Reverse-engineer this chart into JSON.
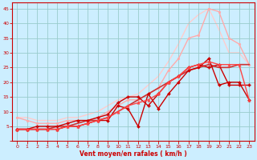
{
  "background_color": "#cceeff",
  "grid_color": "#99cccc",
  "xlabel": "Vent moyen/en rafales ( km/h )",
  "xlabel_color": "#cc0000",
  "tick_color": "#cc0000",
  "xlim": [
    -0.5,
    23.5
  ],
  "ylim": [
    0,
    47
  ],
  "yticks": [
    0,
    5,
    10,
    15,
    20,
    25,
    30,
    35,
    40,
    45
  ],
  "xticks": [
    0,
    1,
    2,
    3,
    4,
    5,
    6,
    7,
    8,
    9,
    10,
    11,
    12,
    13,
    14,
    15,
    16,
    17,
    18,
    19,
    20,
    21,
    22,
    23
  ],
  "lines": [
    {
      "x": [
        0,
        1,
        2,
        3,
        4,
        5,
        6,
        7,
        8,
        9,
        10,
        11,
        12,
        13,
        14,
        15,
        16,
        17,
        18,
        19,
        20,
        21,
        22,
        23
      ],
      "y": [
        8,
        7,
        6,
        6,
        6,
        7,
        7,
        7,
        8,
        10,
        12,
        14,
        14,
        16,
        18,
        24,
        28,
        35,
        36,
        45,
        44,
        35,
        33,
        26
      ],
      "color": "#ffaaaa",
      "lw": 1.0,
      "marker": "o",
      "ms": 2.0,
      "zorder": 2
    },
    {
      "x": [
        0,
        1,
        2,
        3,
        4,
        5,
        6,
        7,
        8,
        9,
        10,
        11,
        12,
        13,
        14,
        15,
        16,
        17,
        18,
        19,
        20,
        21,
        22,
        23
      ],
      "y": [
        8,
        8,
        7,
        7,
        7,
        8,
        8,
        9,
        10,
        12,
        14,
        15,
        16,
        19,
        22,
        27,
        33,
        40,
        43,
        45,
        38,
        30,
        30,
        26
      ],
      "color": "#ffcccc",
      "lw": 1.0,
      "marker": null,
      "ms": 0,
      "zorder": 1
    },
    {
      "x": [
        0,
        1,
        2,
        3,
        4,
        5,
        6,
        7,
        8,
        9,
        10,
        11,
        12,
        13,
        14,
        15,
        16,
        17,
        18,
        19,
        20,
        21,
        22,
        23
      ],
      "y": [
        4,
        4,
        4,
        4,
        5,
        5,
        6,
        7,
        7,
        8,
        10,
        12,
        14,
        16,
        18,
        20,
        22,
        24,
        25,
        26,
        25,
        25,
        26,
        26
      ],
      "color": "#cc3333",
      "lw": 1.2,
      "marker": null,
      "ms": 0,
      "zorder": 3
    },
    {
      "x": [
        0,
        1,
        2,
        3,
        4,
        5,
        6,
        7,
        8,
        9,
        10,
        11,
        12,
        13,
        14,
        15,
        16,
        17,
        18,
        19,
        20,
        21,
        22,
        23
      ],
      "y": [
        4,
        4,
        4,
        4,
        4,
        5,
        5,
        6,
        7,
        7,
        12,
        11,
        5,
        16,
        11,
        16,
        20,
        24,
        25,
        28,
        19,
        20,
        20,
        14
      ],
      "color": "#cc0000",
      "lw": 1.0,
      "marker": "D",
      "ms": 2.0,
      "zorder": 4
    },
    {
      "x": [
        0,
        1,
        2,
        3,
        4,
        5,
        6,
        7,
        8,
        9,
        10,
        11,
        12,
        13,
        14,
        15,
        16,
        17,
        18,
        19,
        20,
        21,
        22,
        23
      ],
      "y": [
        4,
        4,
        5,
        5,
        5,
        6,
        7,
        7,
        8,
        9,
        13,
        15,
        15,
        12,
        16,
        20,
        22,
        25,
        26,
        25,
        26,
        19,
        19,
        19
      ],
      "color": "#cc0000",
      "lw": 1.0,
      "marker": "P",
      "ms": 2.5,
      "zorder": 4
    },
    {
      "x": [
        0,
        1,
        2,
        3,
        4,
        5,
        6,
        7,
        8,
        9,
        10,
        11,
        12,
        13,
        14,
        15,
        16,
        17,
        18,
        19,
        20,
        21,
        22,
        23
      ],
      "y": [
        4,
        4,
        4,
        4,
        4,
        5,
        5,
        6,
        7,
        8,
        10,
        12,
        13,
        14,
        16,
        20,
        22,
        25,
        26,
        27,
        26,
        26,
        26,
        14
      ],
      "color": "#ff4444",
      "lw": 1.0,
      "marker": "^",
      "ms": 2.5,
      "zorder": 4
    }
  ]
}
